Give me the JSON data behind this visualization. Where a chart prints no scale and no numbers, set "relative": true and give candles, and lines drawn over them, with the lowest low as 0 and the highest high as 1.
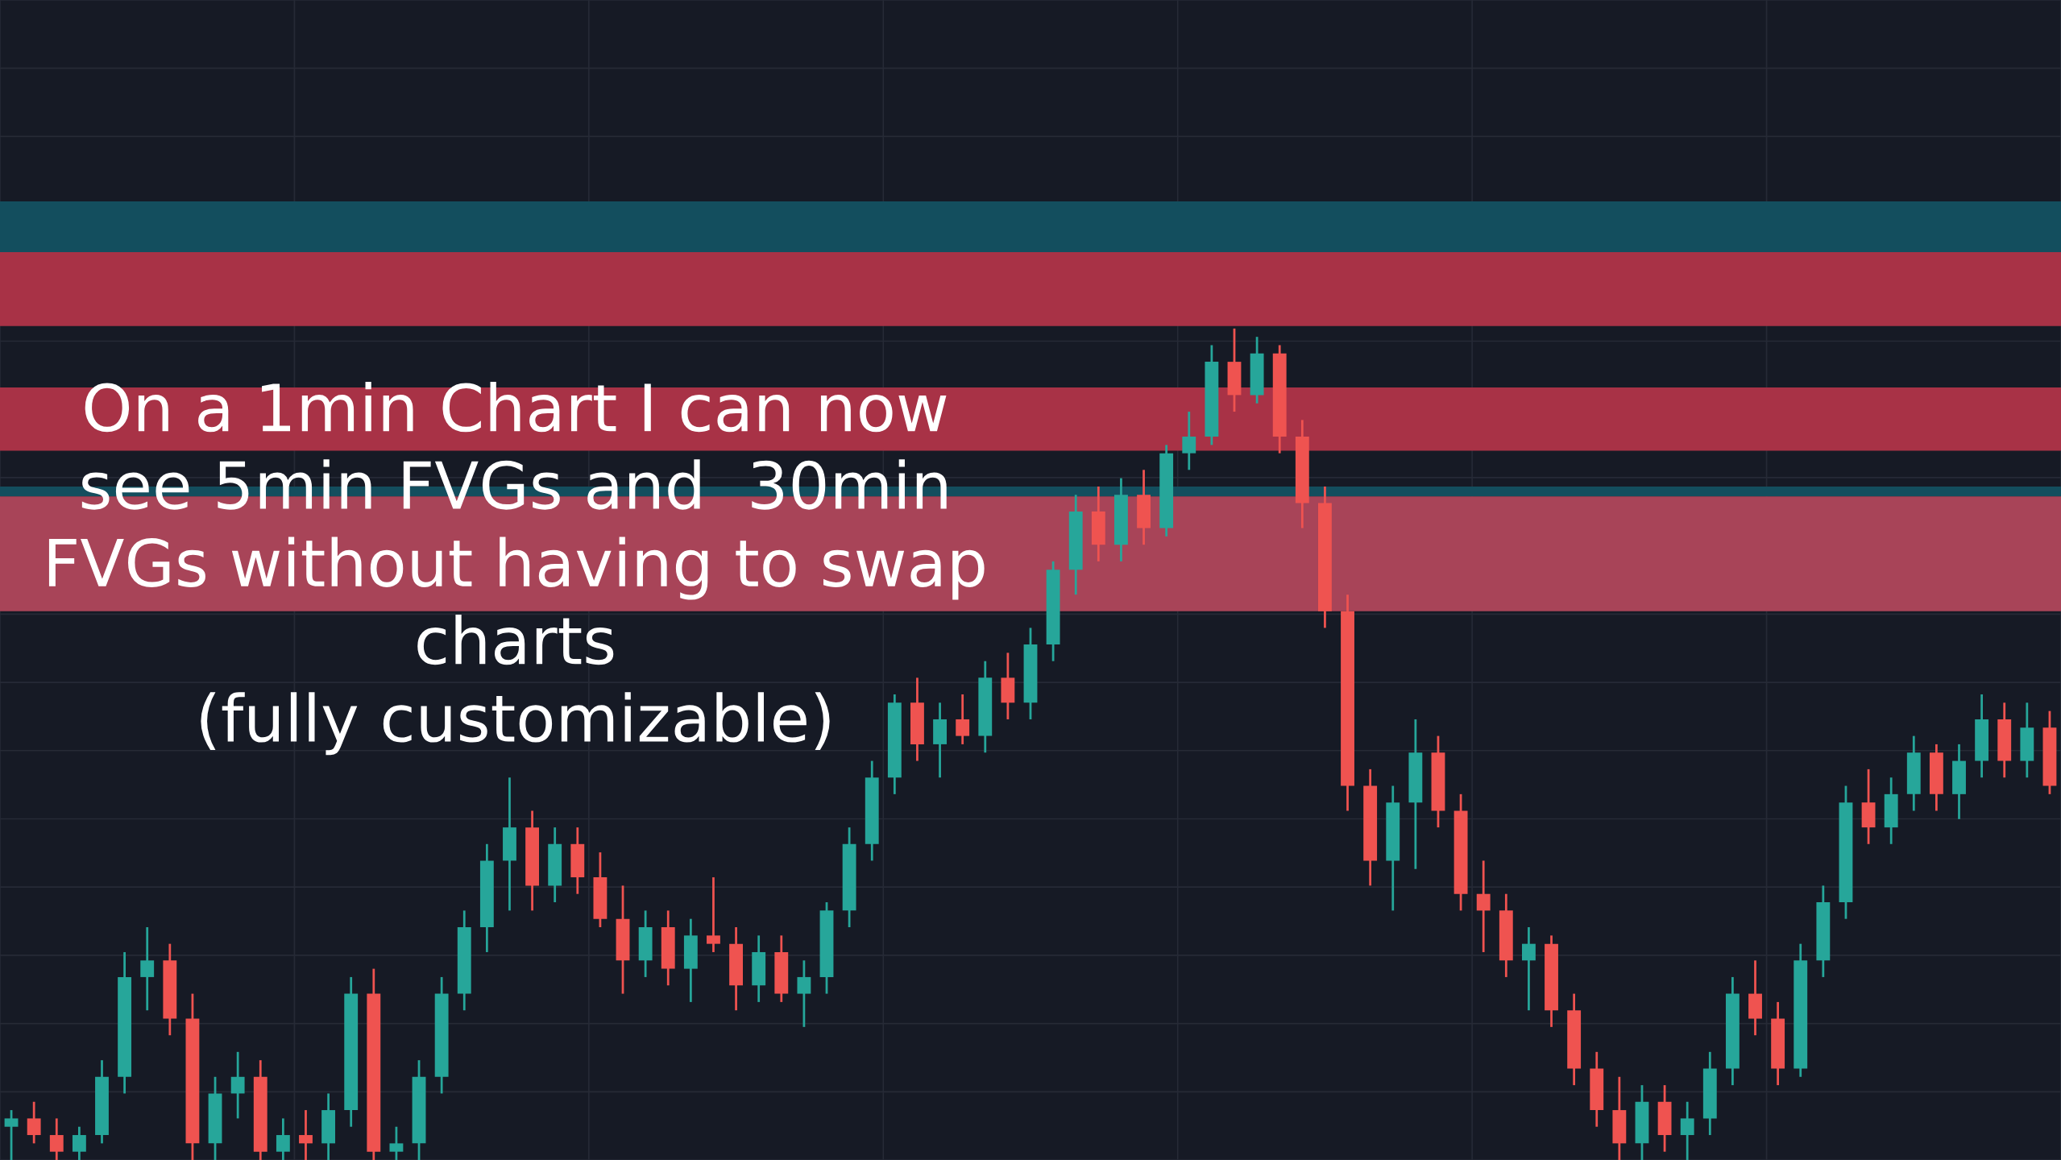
{
  "chart_data": {
    "type": "candlestick",
    "relative": true,
    "grid": true,
    "annotations": [
      "On a 1min Chart I can now\nsee 5min FVGs and  30min\nFVGs without having to swap\ncharts\n(fully customizable)"
    ],
    "categories": [
      null,
      null,
      null,
      null,
      null,
      null,
      null,
      null,
      null,
      null,
      null,
      null,
      null,
      null,
      null,
      null,
      null,
      null,
      null,
      null,
      null,
      null,
      null,
      null,
      null,
      null,
      null,
      null,
      null,
      null,
      null,
      null,
      null,
      null,
      null,
      null,
      null,
      null,
      null,
      null,
      null,
      null,
      null,
      null,
      null,
      null,
      null,
      null,
      null,
      null,
      null,
      null,
      null,
      null,
      null,
      null,
      null,
      null,
      null,
      null,
      null,
      null,
      null,
      null,
      null,
      null,
      null,
      null,
      null,
      null,
      null,
      null,
      null,
      null,
      null,
      null,
      null,
      null,
      null,
      null,
      null,
      null,
      null,
      null,
      null,
      null,
      null,
      null,
      null,
      null,
      null
    ],
    "ohlc": [
      [
        0.04,
        0.06,
        0.0,
        0.05
      ],
      [
        0.05,
        0.07,
        0.02,
        0.03
      ],
      [
        0.03,
        0.05,
        0.0,
        0.01
      ],
      [
        0.01,
        0.04,
        0.0,
        0.03
      ],
      [
        0.03,
        0.12,
        0.02,
        0.1
      ],
      [
        0.1,
        0.25,
        0.08,
        0.22
      ],
      [
        0.22,
        0.28,
        0.18,
        0.24
      ],
      [
        0.24,
        0.26,
        0.15,
        0.17
      ],
      [
        0.17,
        0.2,
        0.0,
        0.02
      ],
      [
        0.02,
        0.1,
        0.0,
        0.08
      ],
      [
        0.08,
        0.13,
        0.05,
        0.1
      ],
      [
        0.1,
        0.12,
        0.0,
        0.01
      ],
      [
        0.01,
        0.05,
        0.0,
        0.03
      ],
      [
        0.03,
        0.06,
        0.0,
        0.02
      ],
      [
        0.02,
        0.08,
        0.0,
        0.06
      ],
      [
        0.06,
        0.22,
        0.04,
        0.2
      ],
      [
        0.2,
        0.23,
        0.0,
        0.01
      ],
      [
        0.01,
        0.04,
        0.0,
        0.02
      ],
      [
        0.02,
        0.12,
        0.0,
        0.1
      ],
      [
        0.1,
        0.22,
        0.08,
        0.2
      ],
      [
        0.2,
        0.3,
        0.18,
        0.28
      ],
      [
        0.28,
        0.38,
        0.25,
        0.36
      ],
      [
        0.36,
        0.46,
        0.3,
        0.4
      ],
      [
        0.4,
        0.42,
        0.3,
        0.33
      ],
      [
        0.33,
        0.4,
        0.31,
        0.38
      ],
      [
        0.38,
        0.4,
        0.32,
        0.34
      ],
      [
        0.34,
        0.37,
        0.28,
        0.29
      ],
      [
        0.29,
        0.33,
        0.2,
        0.24
      ],
      [
        0.24,
        0.3,
        0.22,
        0.28
      ],
      [
        0.28,
        0.3,
        0.21,
        0.23
      ],
      [
        0.23,
        0.29,
        0.19,
        0.27
      ],
      [
        0.27,
        0.34,
        0.25,
        0.26
      ],
      [
        0.26,
        0.28,
        0.18,
        0.21
      ],
      [
        0.21,
        0.27,
        0.19,
        0.25
      ],
      [
        0.25,
        0.27,
        0.19,
        0.2
      ],
      [
        0.2,
        0.24,
        0.16,
        0.22
      ],
      [
        0.22,
        0.31,
        0.2,
        0.3
      ],
      [
        0.3,
        0.4,
        0.28,
        0.38
      ],
      [
        0.38,
        0.48,
        0.36,
        0.46
      ],
      [
        0.46,
        0.56,
        0.44,
        0.55
      ],
      [
        0.55,
        0.58,
        0.48,
        0.5
      ],
      [
        0.5,
        0.55,
        0.46,
        0.53
      ],
      [
        0.53,
        0.56,
        0.5,
        0.51
      ],
      [
        0.51,
        0.6,
        0.49,
        0.58
      ],
      [
        0.58,
        0.61,
        0.53,
        0.55
      ],
      [
        0.55,
        0.64,
        0.53,
        0.62
      ],
      [
        0.62,
        0.72,
        0.6,
        0.71
      ],
      [
        0.71,
        0.8,
        0.68,
        0.78
      ],
      [
        0.78,
        0.81,
        0.72,
        0.74
      ],
      [
        0.74,
        0.82,
        0.72,
        0.8
      ],
      [
        0.8,
        0.83,
        0.74,
        0.76
      ],
      [
        0.76,
        0.86,
        0.75,
        0.85
      ],
      [
        0.85,
        0.9,
        0.83,
        0.87
      ],
      [
        0.87,
        0.98,
        0.86,
        0.96
      ],
      [
        0.96,
        1.0,
        0.9,
        0.92
      ],
      [
        0.92,
        0.99,
        0.91,
        0.97
      ],
      [
        0.97,
        0.98,
        0.85,
        0.87
      ],
      [
        0.87,
        0.89,
        0.76,
        0.79
      ],
      [
        0.79,
        0.81,
        0.64,
        0.66
      ],
      [
        0.66,
        0.68,
        0.42,
        0.45
      ],
      [
        0.45,
        0.47,
        0.33,
        0.36
      ],
      [
        0.36,
        0.45,
        0.3,
        0.43
      ],
      [
        0.43,
        0.53,
        0.35,
        0.49
      ],
      [
        0.49,
        0.51,
        0.4,
        0.42
      ],
      [
        0.42,
        0.44,
        0.3,
        0.32
      ],
      [
        0.32,
        0.36,
        0.25,
        0.3
      ],
      [
        0.3,
        0.32,
        0.22,
        0.24
      ],
      [
        0.24,
        0.28,
        0.18,
        0.26
      ],
      [
        0.26,
        0.27,
        0.16,
        0.18
      ],
      [
        0.18,
        0.2,
        0.09,
        0.11
      ],
      [
        0.11,
        0.13,
        0.04,
        0.06
      ],
      [
        0.06,
        0.1,
        0.0,
        0.02
      ],
      [
        0.02,
        0.09,
        0.0,
        0.07
      ],
      [
        0.07,
        0.09,
        0.01,
        0.03
      ],
      [
        0.03,
        0.07,
        0.0,
        0.05
      ],
      [
        0.05,
        0.13,
        0.03,
        0.11
      ],
      [
        0.11,
        0.22,
        0.09,
        0.2
      ],
      [
        0.2,
        0.24,
        0.15,
        0.17
      ],
      [
        0.17,
        0.19,
        0.09,
        0.11
      ],
      [
        0.11,
        0.26,
        0.1,
        0.24
      ],
      [
        0.24,
        0.33,
        0.22,
        0.31
      ],
      [
        0.31,
        0.45,
        0.29,
        0.43
      ],
      [
        0.43,
        0.47,
        0.38,
        0.4
      ],
      [
        0.4,
        0.46,
        0.38,
        0.44
      ],
      [
        0.44,
        0.51,
        0.42,
        0.49
      ],
      [
        0.49,
        0.5,
        0.42,
        0.44
      ],
      [
        0.44,
        0.5,
        0.41,
        0.48
      ],
      [
        0.48,
        0.56,
        0.46,
        0.53
      ],
      [
        0.53,
        0.55,
        0.46,
        0.48
      ],
      [
        0.48,
        0.55,
        0.46,
        0.52
      ],
      [
        0.52,
        0.54,
        0.44,
        0.45
      ]
    ],
    "colors": [
      "#26a69a",
      "#ef5350",
      "#ef5350",
      "#26a69a",
      "#26a69a",
      "#26a69a",
      "#26a69a",
      "#ef5350",
      "#ef5350",
      "#26a69a",
      "#26a69a",
      "#ef5350",
      "#26a69a",
      "#ef5350",
      "#26a69a",
      "#26a69a",
      "#ef5350",
      "#26a69a",
      "#26a69a",
      "#26a69a",
      "#26a69a",
      "#26a69a",
      "#26a69a",
      "#ef5350",
      "#26a69a",
      "#ef5350",
      "#ef5350",
      "#ef5350",
      "#26a69a",
      "#ef5350",
      "#26a69a",
      "#ef5350",
      "#ef5350",
      "#26a69a",
      "#ef5350",
      "#26a69a",
      "#26a69a",
      "#26a69a",
      "#26a69a",
      "#26a69a",
      "#ef5350",
      "#26a69a",
      "#ef5350",
      "#26a69a",
      "#ef5350",
      "#26a69a",
      "#26a69a",
      "#26a69a",
      "#ef5350",
      "#26a69a",
      "#ef5350",
      "#26a69a",
      "#26a69a",
      "#26a69a",
      "#ef5350",
      "#26a69a",
      "#ef5350",
      "#ef5350",
      "#ef5350",
      "#ef5350",
      "#ef5350",
      "#26a69a",
      "#26a69a",
      "#ef5350",
      "#ef5350",
      "#ef5350",
      "#ef5350",
      "#26a69a",
      "#ef5350",
      "#ef5350",
      "#ef5350",
      "#ef5350",
      "#26a69a",
      "#ef5350",
      "#26a69a",
      "#26a69a",
      "#26a69a",
      "#ef5350",
      "#ef5350",
      "#26a69a",
      "#26a69a",
      "#26a69a",
      "#ef5350",
      "#26a69a",
      "#26a69a",
      "#ef5350",
      "#26a69a",
      "#26a69a",
      "#ef5350",
      "#26a69a",
      "#ef5350"
    ],
    "bands": [
      {
        "axis": "y",
        "from": 1.092,
        "to": 1.153,
        "color": "#134e5e"
      },
      {
        "axis": "y",
        "from": 1.003,
        "to": 1.092,
        "color": "#a83246"
      },
      {
        "axis": "y",
        "from": 0.853,
        "to": 0.929,
        "color": "#a83246"
      },
      {
        "axis": "y",
        "from": 0.798,
        "to": 0.81,
        "color": "#134e5e"
      },
      {
        "axis": "y",
        "from": 0.66,
        "to": 0.798,
        "color": "#a84458"
      }
    ]
  }
}
